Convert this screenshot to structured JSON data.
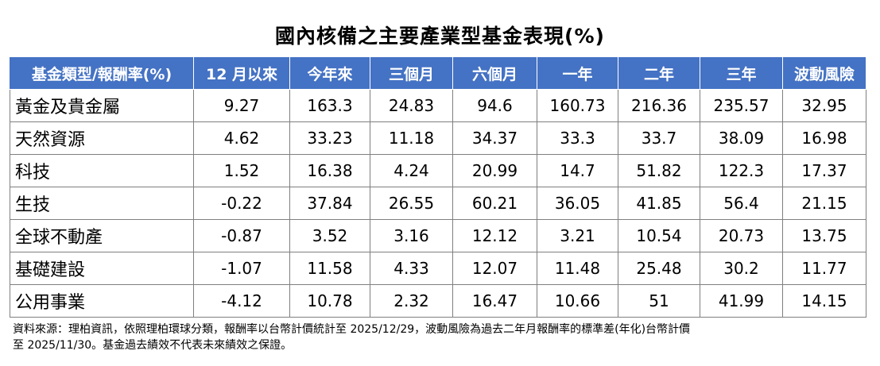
{
  "title": "國內核備之主要產業型基金表現(%)",
  "table": {
    "headers": [
      "基金類型/報酬率(%)",
      "12 月以來",
      "今年來",
      "三個月",
      "六個月",
      "一年",
      "二年",
      "三年",
      "波動風險"
    ],
    "rows": [
      [
        "黃金及貴金屬",
        "9.27",
        "163.3",
        "24.83",
        "94.6",
        "160.73",
        "216.36",
        "235.57",
        "32.95"
      ],
      [
        "天然資源",
        "4.62",
        "33.23",
        "11.18",
        "34.37",
        "33.3",
        "33.7",
        "38.09",
        "16.98"
      ],
      [
        "科技",
        "1.52",
        "16.38",
        "4.24",
        "20.99",
        "14.7",
        "51.82",
        "122.3",
        "17.37"
      ],
      [
        "生技",
        "-0.22",
        "37.84",
        "26.55",
        "60.21",
        "36.05",
        "41.85",
        "56.4",
        "21.15"
      ],
      [
        "全球不動產",
        "-0.87",
        "3.52",
        "3.16",
        "12.12",
        "3.21",
        "10.54",
        "20.73",
        "13.75"
      ],
      [
        "基礎建設",
        "-1.07",
        "11.58",
        "4.33",
        "12.07",
        "11.48",
        "25.48",
        "30.2",
        "11.77"
      ],
      [
        "公用事業",
        "-4.12",
        "10.78",
        "2.32",
        "16.47",
        "10.66",
        "51",
        "41.99",
        "14.15"
      ]
    ]
  },
  "note": {
    "line1": "資料來源：理柏資訊，依照理柏環球分類，報酬率以台幣計價統計至 2025/12/29，波動風險為過去二年月報酬率的標準差(年化)台幣計價",
    "line2": "至 2025/11/30。基金過去績效不代表未來績效之保證。"
  },
  "colors": {
    "header_bg": "#4472c4",
    "header_text": "#ffffff",
    "grid": "#7f7f7f"
  }
}
